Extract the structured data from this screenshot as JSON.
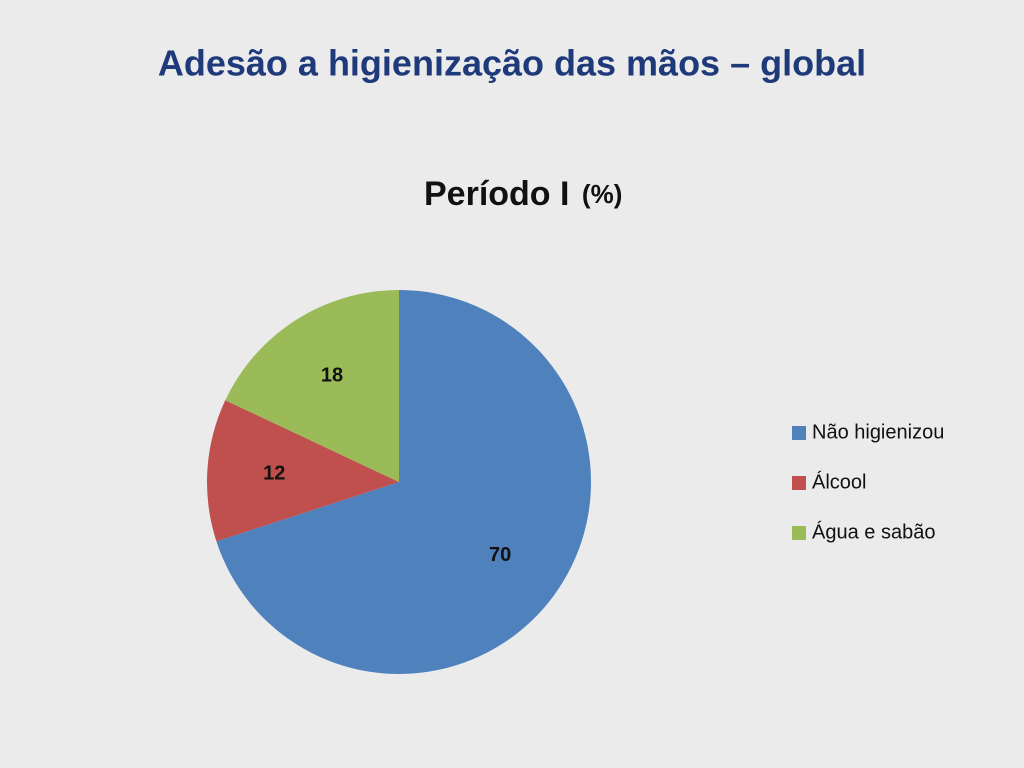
{
  "slide_title": "Adesão a higienização das mãos – global",
  "chart_data": {
    "type": "pie",
    "title": "Período I",
    "subtitle": "(%)",
    "categories": [
      "Não higienizou",
      "Álcool",
      "Água e sabão"
    ],
    "values": [
      70,
      12,
      18
    ],
    "colors": [
      "#4f81bd",
      "#c0504d",
      "#9bbb59"
    ],
    "legend": "right"
  }
}
